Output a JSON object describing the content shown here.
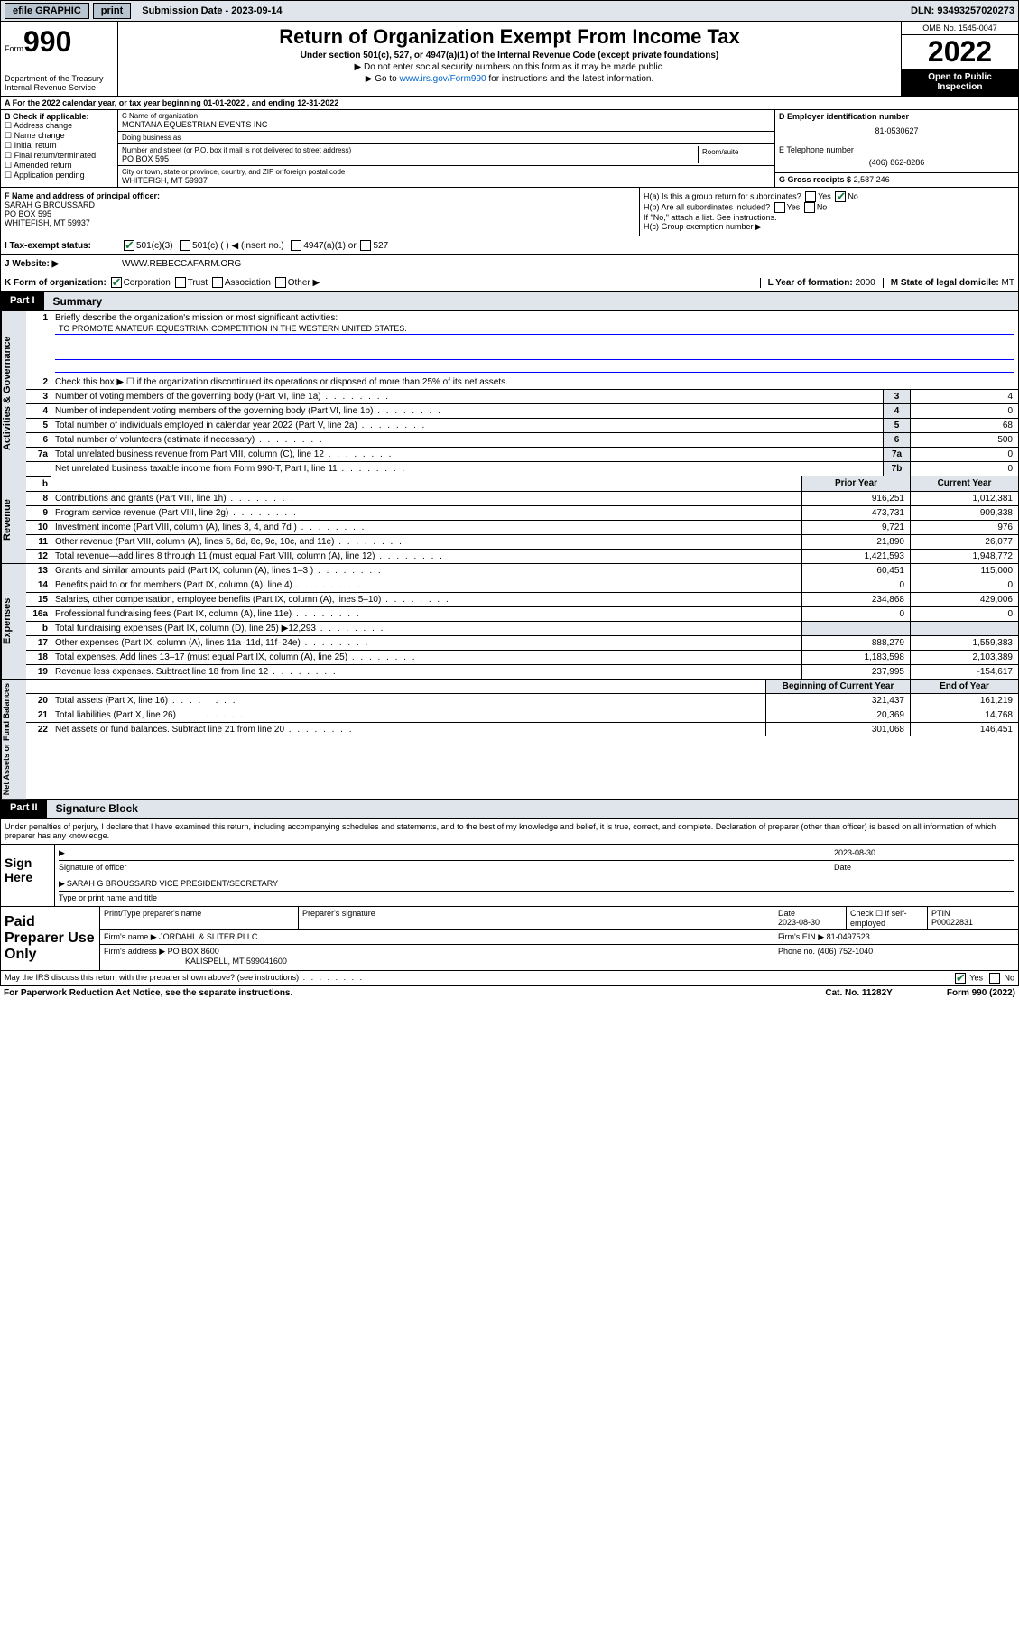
{
  "topbar": {
    "efile": "efile GRAPHIC",
    "print": "print",
    "submission_label": "Submission Date - ",
    "submission_date": "2023-09-14",
    "dln": "DLN: 93493257020273"
  },
  "header": {
    "form_label": "Form",
    "form_no": "990",
    "dept": "Department of the Treasury\nInternal Revenue Service",
    "title": "Return of Organization Exempt From Income Tax",
    "sub": "Under section 501(c), 527, or 4947(a)(1) of the Internal Revenue Code (except private foundations)",
    "note1": "▶ Do not enter social security numbers on this form as it may be made public.",
    "note2_pre": "▶ Go to ",
    "note2_link": "www.irs.gov/Form990",
    "note2_post": " for instructions and the latest information.",
    "omb": "OMB No. 1545-0047",
    "year": "2022",
    "open": "Open to Public Inspection"
  },
  "section_a": "A For the 2022 calendar year, or tax year beginning 01-01-2022   , and ending 12-31-2022",
  "col_b": {
    "hdr": "B Check if applicable:",
    "opts": [
      "Address change",
      "Name change",
      "Initial return",
      "Final return/terminated",
      "Amended return",
      "Application pending"
    ]
  },
  "col_c": {
    "name_lbl": "C Name of organization",
    "name": "MONTANA EQUESTRIAN EVENTS INC",
    "dba_lbl": "Doing business as",
    "dba": "",
    "addr_lbl": "Number and street (or P.O. box if mail is not delivered to street address)",
    "room_lbl": "Room/suite",
    "addr": "PO BOX 595",
    "city_lbl": "City or town, state or province, country, and ZIP or foreign postal code",
    "city": "WHITEFISH, MT  59937"
  },
  "col_d": {
    "ein_lbl": "D Employer identification number",
    "ein": "81-0530627",
    "tel_lbl": "E Telephone number",
    "tel": "(406) 862-8286",
    "gross_lbl": "G Gross receipts $",
    "gross": "2,587,246"
  },
  "row_f": {
    "lbl": "F Name and address of principal officer:",
    "name": "SARAH G BROUSSARD",
    "addr1": "PO BOX 595",
    "addr2": "WHITEFISH, MT  59937",
    "ha": "H(a)  Is this a group return for subordinates?",
    "ha_yes": "Yes",
    "ha_no": "No",
    "hb": "H(b)  Are all subordinates included?",
    "hb_yes": "Yes",
    "hb_no": "No",
    "hb_note": "If \"No,\" attach a list. See instructions.",
    "hc": "H(c)  Group exemption number ▶"
  },
  "row_i": {
    "lbl": "I   Tax-exempt status:",
    "o1": "501(c)(3)",
    "o2": "501(c) (  ) ◀ (insert no.)",
    "o3": "4947(a)(1) or",
    "o4": "527"
  },
  "row_j": {
    "lbl": "J   Website: ▶",
    "val": "WWW.REBECCAFARM.ORG"
  },
  "row_k": {
    "lbl": "K Form of organization:",
    "o1": "Corporation",
    "o2": "Trust",
    "o3": "Association",
    "o4": "Other ▶",
    "l_lbl": "L Year of formation:",
    "l_val": "2000",
    "m_lbl": "M State of legal domicile:",
    "m_val": "MT"
  },
  "parts": {
    "p1": "Part I",
    "p1_name": "Summary",
    "p2": "Part II",
    "p2_name": "Signature Block"
  },
  "summary": {
    "l1_lbl": "Briefly describe the organization's mission or most significant activities:",
    "l1_val": "TO PROMOTE AMATEUR EQUESTRIAN COMPETITION IN THE WESTERN UNITED STATES.",
    "l2": "Check this box ▶ ☐  if the organization discontinued its operations or disposed of more than 25% of its net assets.",
    "lines_gov": [
      {
        "n": "3",
        "d": "Number of voting members of the governing body (Part VI, line 1a)",
        "b": "3",
        "v": "4"
      },
      {
        "n": "4",
        "d": "Number of independent voting members of the governing body (Part VI, line 1b)",
        "b": "4",
        "v": "0"
      },
      {
        "n": "5",
        "d": "Total number of individuals employed in calendar year 2022 (Part V, line 2a)",
        "b": "5",
        "v": "68"
      },
      {
        "n": "6",
        "d": "Total number of volunteers (estimate if necessary)",
        "b": "6",
        "v": "500"
      },
      {
        "n": "7a",
        "d": "Total unrelated business revenue from Part VIII, column (C), line 12",
        "b": "7a",
        "v": "0"
      },
      {
        "n": "",
        "d": "Net unrelated business taxable income from Form 990-T, Part I, line 11",
        "b": "7b",
        "v": "0"
      }
    ],
    "hdr_prior": "Prior Year",
    "hdr_curr": "Current Year",
    "lines_rev": [
      {
        "n": "8",
        "d": "Contributions and grants (Part VIII, line 1h)",
        "p": "916,251",
        "c": "1,012,381"
      },
      {
        "n": "9",
        "d": "Program service revenue (Part VIII, line 2g)",
        "p": "473,731",
        "c": "909,338"
      },
      {
        "n": "10",
        "d": "Investment income (Part VIII, column (A), lines 3, 4, and 7d )",
        "p": "9,721",
        "c": "976"
      },
      {
        "n": "11",
        "d": "Other revenue (Part VIII, column (A), lines 5, 6d, 8c, 9c, 10c, and 11e)",
        "p": "21,890",
        "c": "26,077"
      },
      {
        "n": "12",
        "d": "Total revenue—add lines 8 through 11 (must equal Part VIII, column (A), line 12)",
        "p": "1,421,593",
        "c": "1,948,772"
      }
    ],
    "lines_exp": [
      {
        "n": "13",
        "d": "Grants and similar amounts paid (Part IX, column (A), lines 1–3 )",
        "p": "60,451",
        "c": "115,000"
      },
      {
        "n": "14",
        "d": "Benefits paid to or for members (Part IX, column (A), line 4)",
        "p": "0",
        "c": "0"
      },
      {
        "n": "15",
        "d": "Salaries, other compensation, employee benefits (Part IX, column (A), lines 5–10)",
        "p": "234,868",
        "c": "429,006"
      },
      {
        "n": "16a",
        "d": "Professional fundraising fees (Part IX, column (A), line 11e)",
        "p": "0",
        "c": "0"
      },
      {
        "n": "b",
        "d": "Total fundraising expenses (Part IX, column (D), line 25) ▶12,293",
        "p": "",
        "c": ""
      },
      {
        "n": "17",
        "d": "Other expenses (Part IX, column (A), lines 11a–11d, 11f–24e)",
        "p": "888,279",
        "c": "1,559,383"
      },
      {
        "n": "18",
        "d": "Total expenses. Add lines 13–17 (must equal Part IX, column (A), line 25)",
        "p": "1,183,598",
        "c": "2,103,389"
      },
      {
        "n": "19",
        "d": "Revenue less expenses. Subtract line 18 from line 12",
        "p": "237,995",
        "c": "-154,617"
      }
    ],
    "hdr_beg": "Beginning of Current Year",
    "hdr_end": "End of Year",
    "lines_net": [
      {
        "n": "20",
        "d": "Total assets (Part X, line 16)",
        "p": "321,437",
        "c": "161,219"
      },
      {
        "n": "21",
        "d": "Total liabilities (Part X, line 26)",
        "p": "20,369",
        "c": "14,768"
      },
      {
        "n": "22",
        "d": "Net assets or fund balances. Subtract line 21 from line 20",
        "p": "301,068",
        "c": "146,451"
      }
    ],
    "vtabs": {
      "gov": "Activities & Governance",
      "rev": "Revenue",
      "exp": "Expenses",
      "net": "Net Assets or Fund Balances"
    }
  },
  "sig": {
    "decl": "Under penalties of perjury, I declare that I have examined this return, including accompanying schedules and statements, and to the best of my knowledge and belief, it is true, correct, and complete. Declaration of preparer (other than officer) is based on all information of which preparer has any knowledge.",
    "sign_here": "Sign Here",
    "sig_officer": "Signature of officer",
    "date_lbl": "Date",
    "date": "2023-08-30",
    "name": "SARAH G BROUSSARD  VICE PRESIDENT/SECRETARY",
    "name_lbl": "Type or print name and title"
  },
  "prep": {
    "label": "Paid Preparer Use Only",
    "c1": "Print/Type preparer's name",
    "c2": "Preparer's signature",
    "c3": "Date",
    "c3v": "2023-08-30",
    "c4": "Check ☐ if self-employed",
    "c5": "PTIN",
    "c5v": "P00022831",
    "firm_lbl": "Firm's name    ▶",
    "firm": "JORDAHL & SLITER PLLC",
    "ein_lbl": "Firm's EIN ▶",
    "ein": "81-0497523",
    "addr_lbl": "Firm's address ▶",
    "addr1": "PO BOX 8600",
    "addr2": "KALISPELL, MT  599041600",
    "phone_lbl": "Phone no.",
    "phone": "(406) 752-1040"
  },
  "footer": {
    "q": "May the IRS discuss this return with the preparer shown above? (see instructions)",
    "yes": "Yes",
    "no": "No",
    "paperwork": "For Paperwork Reduction Act Notice, see the separate instructions.",
    "cat": "Cat. No. 11282Y",
    "form": "Form 990 (2022)"
  }
}
